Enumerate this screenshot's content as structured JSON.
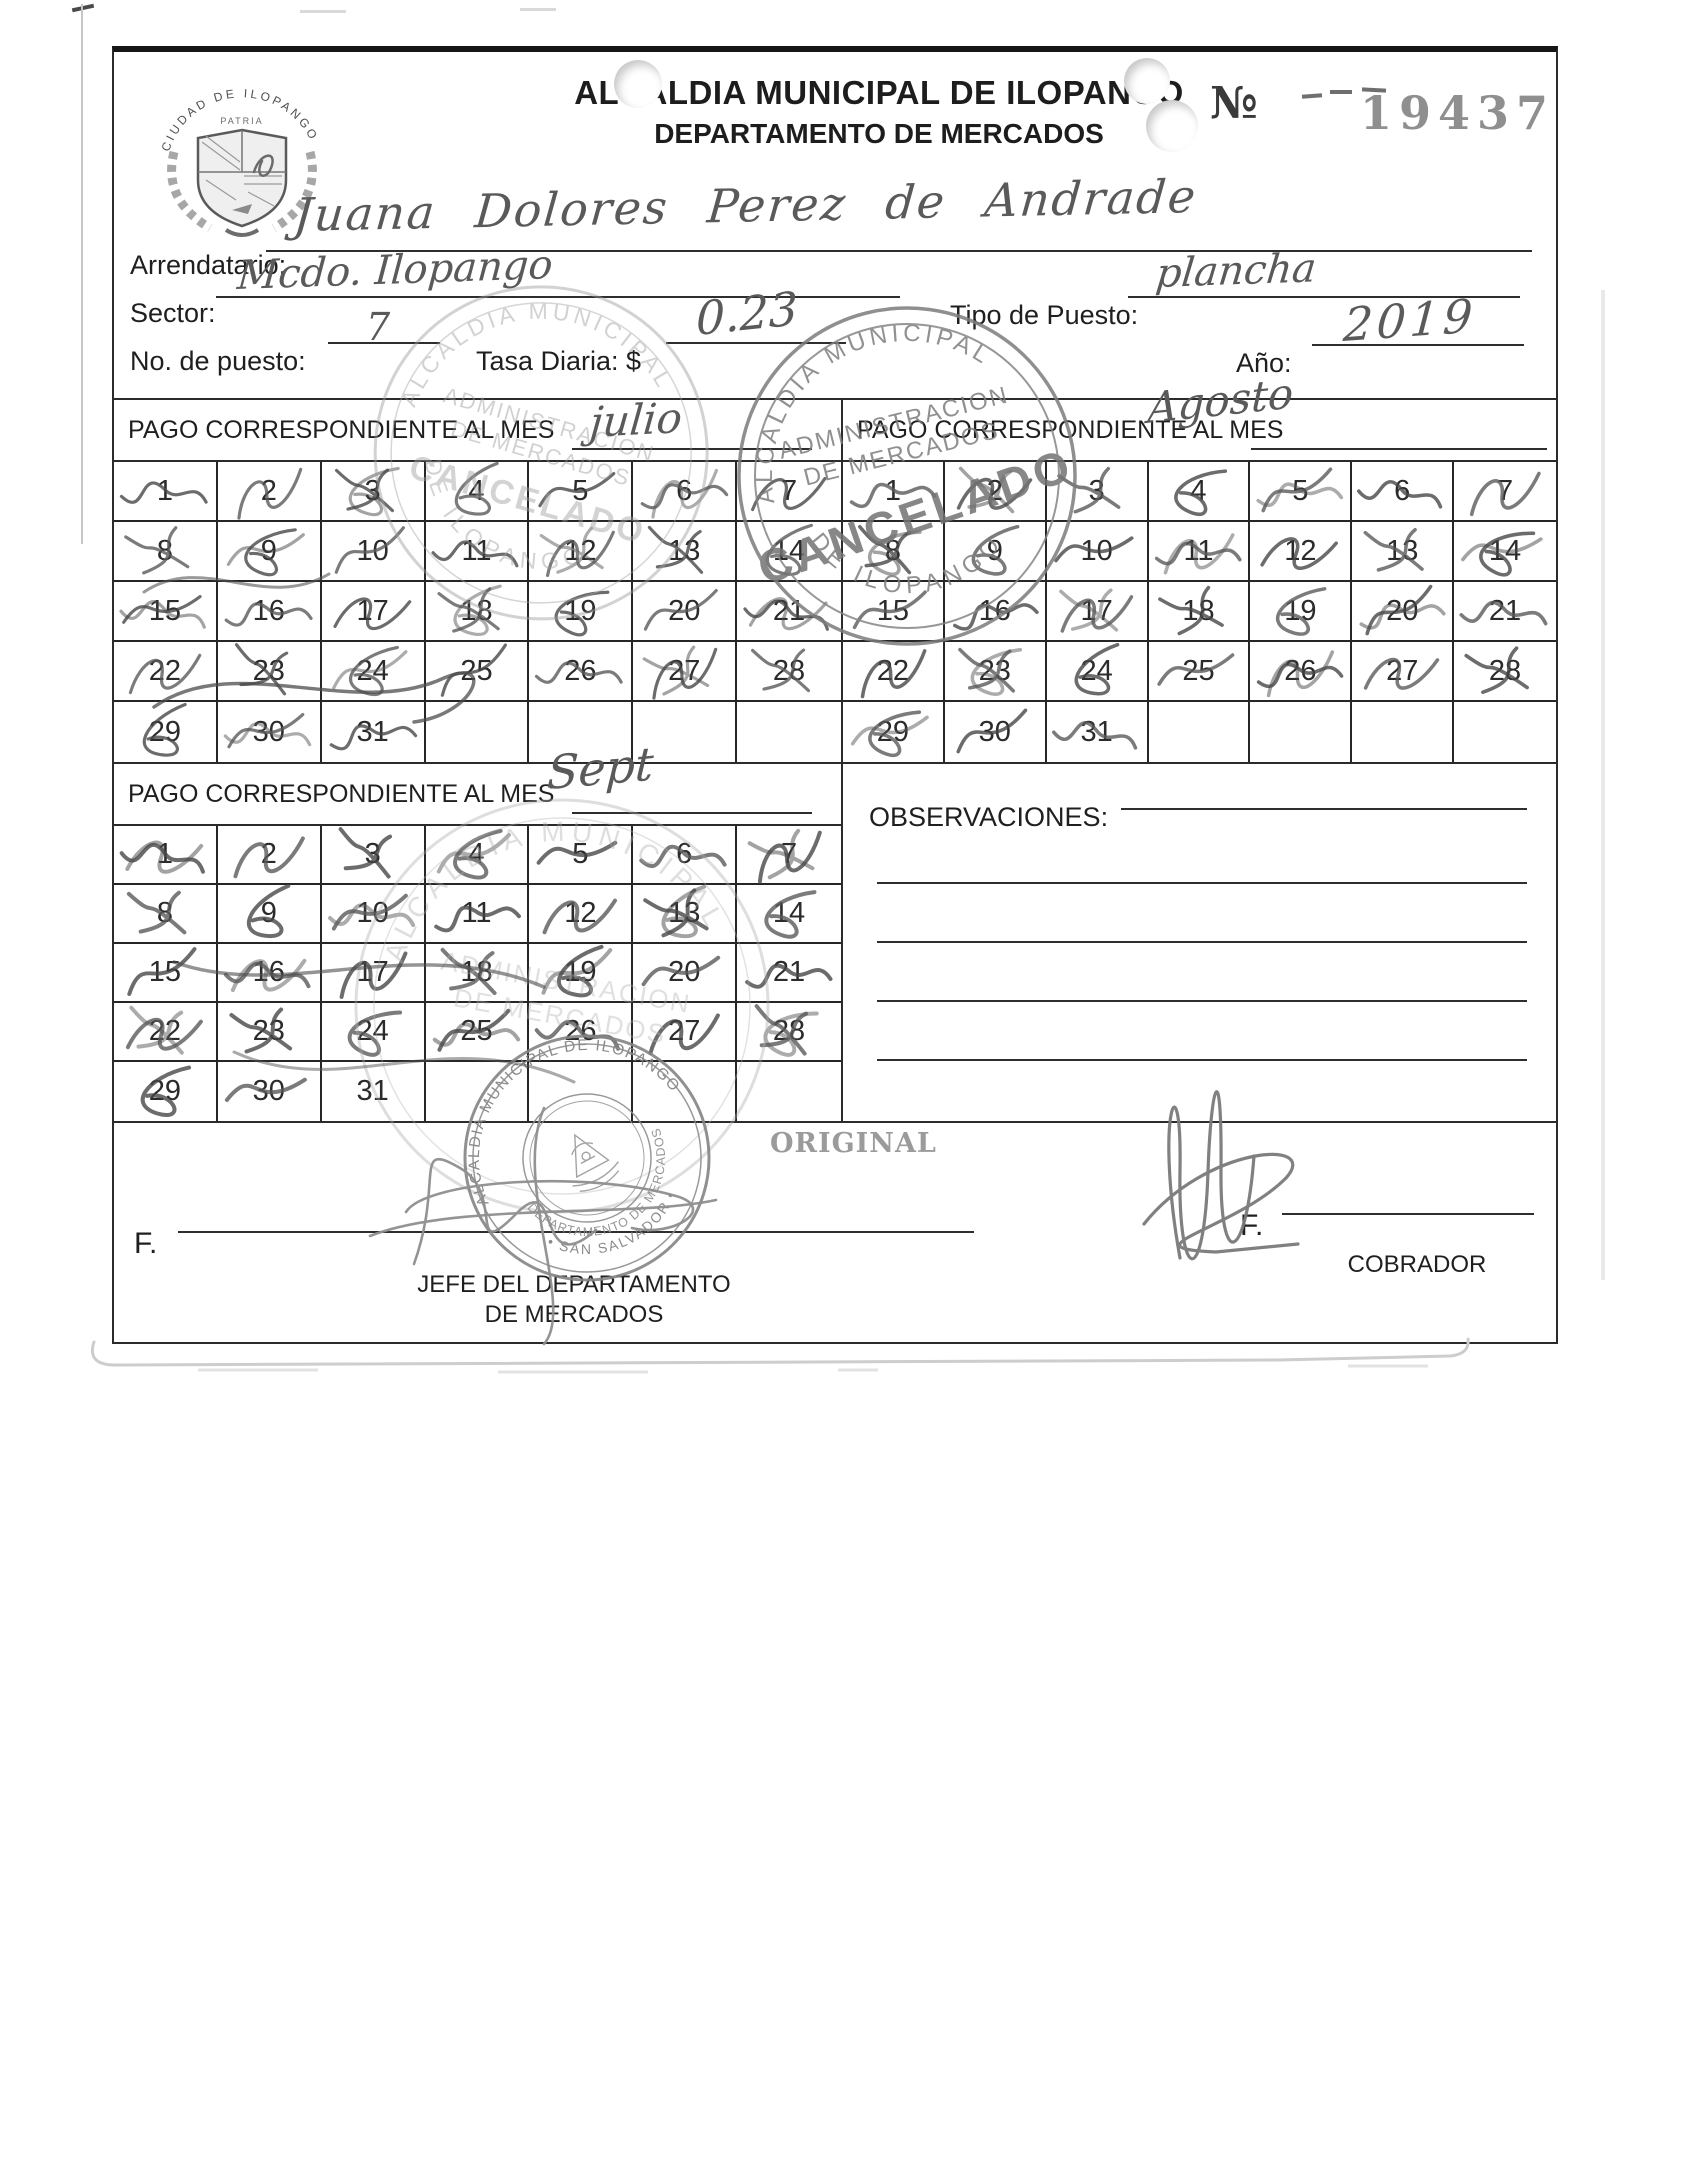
{
  "header": {
    "crest_arc": "CIUDAD DE ILOPANGO",
    "crest_motto": "PATRIA",
    "title_line1": "ALCALDIA MUNICIPAL DE ILOPANGO",
    "title_line2": "DEPARTAMENTO DE MERCADOS",
    "receipt_no_label": "№",
    "receipt_no": "19437"
  },
  "fields": {
    "arrendatario_label": "Arrendatario:",
    "arrendatario_value": "Juana Dolores Perez de Andrade",
    "sector_label": "Sector:",
    "sector_value": "Mcdo. Ilopango",
    "tipo_puesto_label": "Tipo de Puesto:",
    "tipo_puesto_value": "plancha",
    "no_puesto_label": "No. de puesto:",
    "no_puesto_value": "7",
    "tasa_label": "Tasa Diaria: $",
    "tasa_value": "0.23",
    "anio_label": "Año:",
    "anio_value": "2019"
  },
  "calendars": {
    "section_label": "PAGO CORRESPONDIENTE AL MES",
    "days": [
      1,
      2,
      3,
      4,
      5,
      6,
      7,
      8,
      9,
      10,
      11,
      12,
      13,
      14,
      15,
      16,
      17,
      18,
      19,
      20,
      21,
      22,
      23,
      24,
      25,
      26,
      27,
      28,
      29,
      30,
      31
    ],
    "months": [
      {
        "name_handwritten": "julio",
        "marked_days": [
          1,
          2,
          3,
          4,
          5,
          6,
          7,
          8,
          9,
          10,
          11,
          12,
          13,
          14,
          15,
          16,
          17,
          18,
          19,
          20,
          21,
          22,
          23,
          24,
          25,
          26,
          27,
          28,
          29,
          30,
          31
        ]
      },
      {
        "name_handwritten": "Agosto",
        "marked_days": [
          1,
          2,
          3,
          4,
          5,
          6,
          7,
          8,
          9,
          10,
          11,
          12,
          13,
          14,
          15,
          16,
          17,
          18,
          19,
          20,
          21,
          22,
          23,
          24,
          25,
          26,
          27,
          28,
          29,
          30,
          31
        ]
      },
      {
        "name_handwritten": "Sept",
        "marked_days": [
          1,
          2,
          3,
          4,
          5,
          6,
          7,
          8,
          9,
          10,
          11,
          12,
          13,
          14,
          15,
          16,
          17,
          18,
          19,
          20,
          21,
          22,
          23,
          24,
          25,
          26,
          27,
          28,
          29,
          30
        ]
      }
    ]
  },
  "observaciones": {
    "label": "OBSERVACIONES:"
  },
  "stamps": {
    "ring_line1": "ALCALDIA MUNICIPAL",
    "ring_line2": "DE ILOPANGO",
    "admin_line1": "ADMINISTRACION",
    "admin_line2": "DE MERCADOS",
    "cancelado": "CANCELADO",
    "seal_ring_top": "ALCALDIA MUNICIPAL DE ILOPANGO",
    "seal_ring_bottom": "• SAN SALVADOR •",
    "seal_inner": "DEPARTAMENTO DE MERCADOS",
    "original": "ORIGINAL"
  },
  "signatures": {
    "f_label_left": "F.",
    "f_label_right": "F.",
    "left_role_line1": "JEFE DEL DEPARTAMENTO",
    "left_role_line2": "DE MERCADOS",
    "right_role": "COBRADOR"
  }
}
